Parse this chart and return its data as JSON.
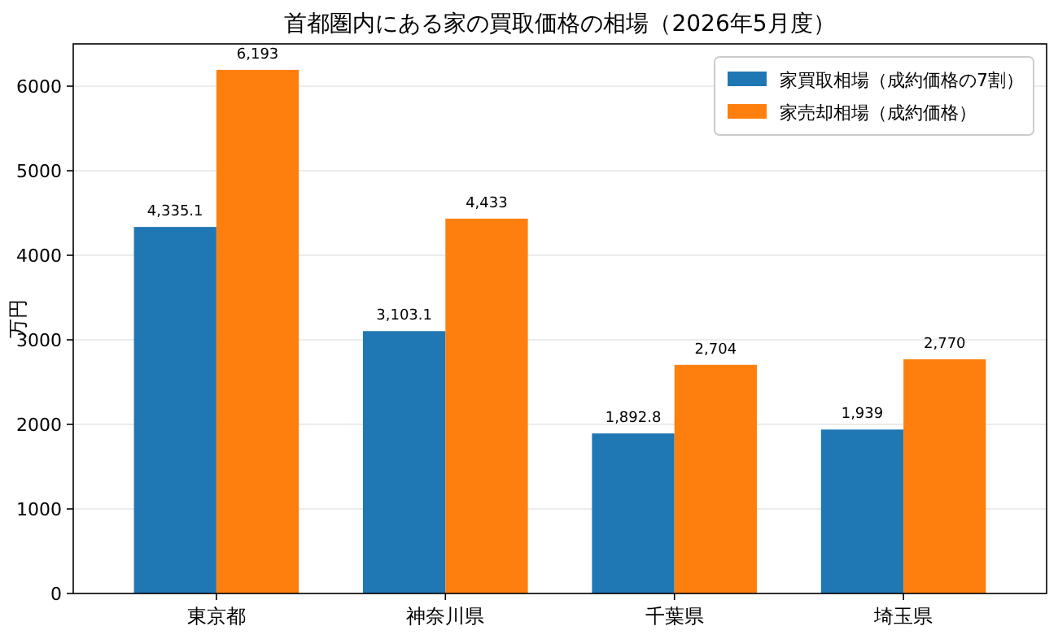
{
  "chart_data": {
    "type": "bar",
    "title": "首都圏内にある家の買取価格の相場（2026年5月度）",
    "ylabel": "万円",
    "categories": [
      "東京都",
      "神奈川県",
      "千葉県",
      "埼玉県"
    ],
    "series": [
      {
        "name": "家買取相場（成約価格の7割）",
        "color": "#1f77b4",
        "values": [
          4335.1,
          3103.1,
          1892.8,
          1939
        ],
        "value_labels": [
          "4,335.1",
          "3,103.1",
          "1,892.8",
          "1,939"
        ]
      },
      {
        "name": "家売却相場（成約価格）",
        "color": "#ff7f0e",
        "values": [
          6193,
          4433,
          2704,
          2770
        ],
        "value_labels": [
          "6,193",
          "4,433",
          "2,704",
          "2,770"
        ]
      }
    ],
    "ylim": [
      0,
      6500
    ],
    "yticks": [
      0,
      1000,
      2000,
      3000,
      4000,
      5000,
      6000
    ],
    "grid": "y",
    "legend": "top right"
  }
}
